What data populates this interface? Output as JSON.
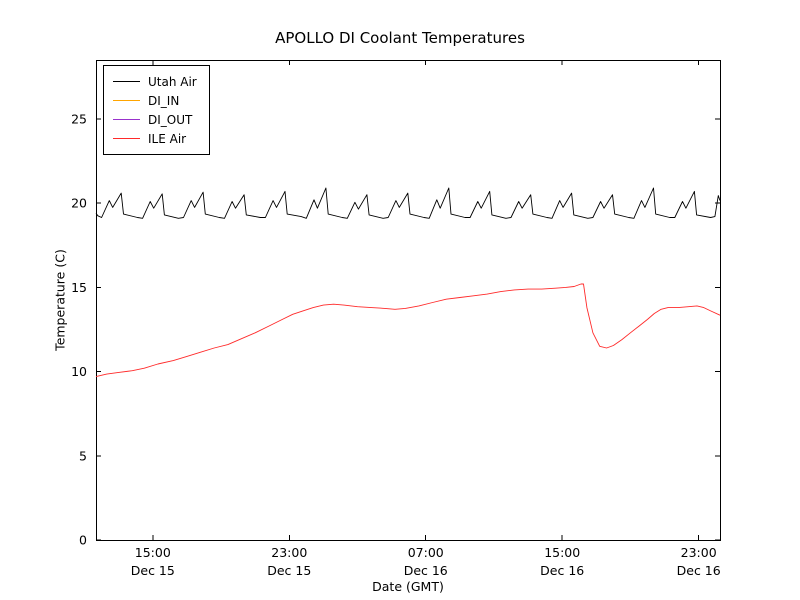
{
  "chart_data": {
    "type": "line",
    "title": "APOLLO DI Coolant Temperatures",
    "xlabel": "Date (GMT)",
    "ylabel": "Temperature (C)",
    "x_unit": "hours since Dec 15 00:00 GMT",
    "xlim": [
      11.67,
      48.25
    ],
    "ylim": [
      0,
      28.5
    ],
    "yticks": [
      0,
      5,
      10,
      15,
      20,
      25
    ],
    "xticks": [
      {
        "hour": 15,
        "time": "15:00",
        "date": "Dec 15"
      },
      {
        "hour": 23,
        "time": "23:00",
        "date": "Dec 15"
      },
      {
        "hour": 31,
        "time": "07:00",
        "date": "Dec 16"
      },
      {
        "hour": 39,
        "time": "15:00",
        "date": "Dec 16"
      },
      {
        "hour": 47,
        "time": "23:00",
        "date": "Dec 16"
      }
    ],
    "grid": false,
    "legend_position": "upper left",
    "series": [
      {
        "name": "Utah Air",
        "color": "#000000",
        "points": [
          [
            11.67,
            19.4
          ],
          [
            11.78,
            19.25
          ],
          [
            12.0,
            19.15
          ],
          [
            12.45,
            20.15
          ],
          [
            12.65,
            19.75
          ],
          [
            13.15,
            20.6
          ],
          [
            13.28,
            19.35
          ],
          [
            14.1,
            19.15
          ],
          [
            14.4,
            19.1
          ],
          [
            14.85,
            20.1
          ],
          [
            15.05,
            19.7
          ],
          [
            15.55,
            20.55
          ],
          [
            15.68,
            19.3
          ],
          [
            16.5,
            19.1
          ],
          [
            16.8,
            19.15
          ],
          [
            17.25,
            20.15
          ],
          [
            17.45,
            19.75
          ],
          [
            17.95,
            20.65
          ],
          [
            18.08,
            19.35
          ],
          [
            18.9,
            19.15
          ],
          [
            19.2,
            19.1
          ],
          [
            19.65,
            20.1
          ],
          [
            19.85,
            19.7
          ],
          [
            20.35,
            20.5
          ],
          [
            20.48,
            19.3
          ],
          [
            21.3,
            19.15
          ],
          [
            21.6,
            19.15
          ],
          [
            22.05,
            20.15
          ],
          [
            22.25,
            19.75
          ],
          [
            22.75,
            20.7
          ],
          [
            22.88,
            19.35
          ],
          [
            23.7,
            19.2
          ],
          [
            24.0,
            19.1
          ],
          [
            24.45,
            20.2
          ],
          [
            24.65,
            19.7
          ],
          [
            25.15,
            20.9
          ],
          [
            25.28,
            19.35
          ],
          [
            26.1,
            19.15
          ],
          [
            26.4,
            19.1
          ],
          [
            26.85,
            20.05
          ],
          [
            27.05,
            19.65
          ],
          [
            27.55,
            20.5
          ],
          [
            27.68,
            19.3
          ],
          [
            28.5,
            19.1
          ],
          [
            28.8,
            19.15
          ],
          [
            29.25,
            20.15
          ],
          [
            29.45,
            19.75
          ],
          [
            29.95,
            20.6
          ],
          [
            30.08,
            19.35
          ],
          [
            30.9,
            19.15
          ],
          [
            31.2,
            19.1
          ],
          [
            31.65,
            20.2
          ],
          [
            31.85,
            19.7
          ],
          [
            32.35,
            20.9
          ],
          [
            32.48,
            19.35
          ],
          [
            33.3,
            19.15
          ],
          [
            33.6,
            19.15
          ],
          [
            34.05,
            20.1
          ],
          [
            34.25,
            19.7
          ],
          [
            34.75,
            20.7
          ],
          [
            34.88,
            19.3
          ],
          [
            35.7,
            19.1
          ],
          [
            36.0,
            19.15
          ],
          [
            36.45,
            20.1
          ],
          [
            36.65,
            19.7
          ],
          [
            37.15,
            20.5
          ],
          [
            37.28,
            19.35
          ],
          [
            38.1,
            19.15
          ],
          [
            38.4,
            19.1
          ],
          [
            38.85,
            20.15
          ],
          [
            39.05,
            19.75
          ],
          [
            39.55,
            20.6
          ],
          [
            39.68,
            19.3
          ],
          [
            40.5,
            19.1
          ],
          [
            40.8,
            19.15
          ],
          [
            41.25,
            20.1
          ],
          [
            41.45,
            19.7
          ],
          [
            41.95,
            20.5
          ],
          [
            42.08,
            19.35
          ],
          [
            42.9,
            19.15
          ],
          [
            43.2,
            19.1
          ],
          [
            43.65,
            20.15
          ],
          [
            43.85,
            19.75
          ],
          [
            44.35,
            20.9
          ],
          [
            44.48,
            19.35
          ],
          [
            45.3,
            19.15
          ],
          [
            45.6,
            19.15
          ],
          [
            46.05,
            20.1
          ],
          [
            46.25,
            19.7
          ],
          [
            46.75,
            20.7
          ],
          [
            46.88,
            19.3
          ],
          [
            47.7,
            19.15
          ],
          [
            47.95,
            19.2
          ],
          [
            48.15,
            20.45
          ],
          [
            48.25,
            20.15
          ]
        ]
      },
      {
        "name": "DI_IN",
        "color": "#ffa500",
        "points": []
      },
      {
        "name": "DI_OUT",
        "color": "#9932cc",
        "points": []
      },
      {
        "name": "ILE Air",
        "color": "#ff2a2a",
        "points": [
          [
            11.67,
            9.7
          ],
          [
            12.3,
            9.85
          ],
          [
            13.0,
            9.95
          ],
          [
            13.8,
            10.05
          ],
          [
            14.5,
            10.2
          ],
          [
            15.3,
            10.45
          ],
          [
            16.2,
            10.65
          ],
          [
            17.0,
            10.9
          ],
          [
            17.8,
            11.15
          ],
          [
            18.6,
            11.4
          ],
          [
            19.4,
            11.6
          ],
          [
            20.2,
            11.95
          ],
          [
            21.0,
            12.3
          ],
          [
            21.8,
            12.7
          ],
          [
            22.6,
            13.1
          ],
          [
            23.2,
            13.4
          ],
          [
            23.8,
            13.6
          ],
          [
            24.4,
            13.8
          ],
          [
            25.0,
            13.95
          ],
          [
            25.6,
            14.0
          ],
          [
            26.2,
            13.95
          ],
          [
            27.0,
            13.85
          ],
          [
            27.8,
            13.8
          ],
          [
            28.6,
            13.75
          ],
          [
            29.2,
            13.7
          ],
          [
            29.8,
            13.75
          ],
          [
            30.6,
            13.9
          ],
          [
            31.4,
            14.1
          ],
          [
            32.2,
            14.3
          ],
          [
            33.0,
            14.4
          ],
          [
            33.8,
            14.5
          ],
          [
            34.6,
            14.6
          ],
          [
            35.4,
            14.75
          ],
          [
            36.2,
            14.85
          ],
          [
            37.0,
            14.9
          ],
          [
            37.8,
            14.9
          ],
          [
            38.6,
            14.95
          ],
          [
            39.2,
            15.0
          ],
          [
            39.7,
            15.05
          ],
          [
            40.1,
            15.2
          ],
          [
            40.25,
            15.2
          ],
          [
            40.45,
            13.8
          ],
          [
            40.8,
            12.3
          ],
          [
            41.2,
            11.5
          ],
          [
            41.6,
            11.4
          ],
          [
            42.0,
            11.55
          ],
          [
            42.5,
            11.9
          ],
          [
            43.0,
            12.3
          ],
          [
            43.5,
            12.7
          ],
          [
            44.0,
            13.1
          ],
          [
            44.4,
            13.45
          ],
          [
            44.8,
            13.7
          ],
          [
            45.2,
            13.8
          ],
          [
            45.8,
            13.8
          ],
          [
            46.4,
            13.85
          ],
          [
            46.9,
            13.9
          ],
          [
            47.3,
            13.8
          ],
          [
            47.7,
            13.6
          ],
          [
            48.25,
            13.35
          ]
        ]
      }
    ]
  }
}
